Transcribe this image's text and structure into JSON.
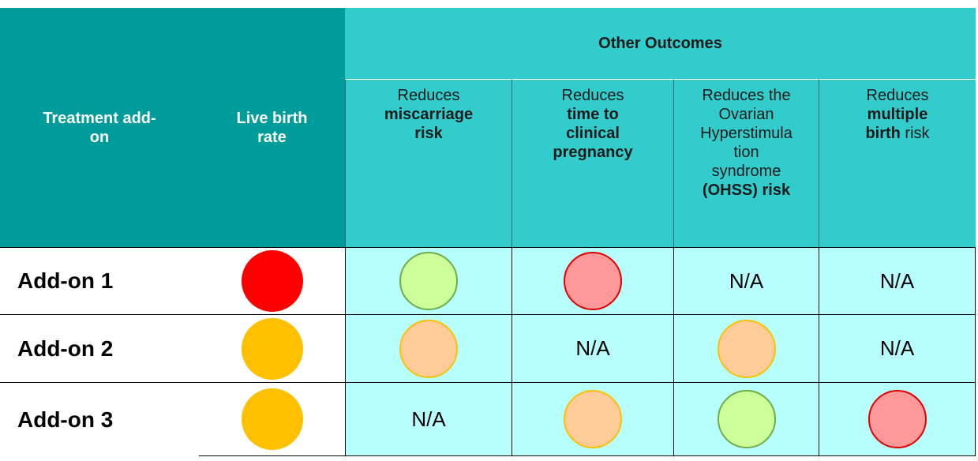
{
  "header": {
    "group": "Other Outcomes",
    "columns": [
      {
        "lines": [
          [
            {
              "text": "Treatment add-",
              "bold": true
            }
          ],
          [
            {
              "text": "on",
              "bold": true
            }
          ]
        ]
      },
      {
        "lines": [
          [
            {
              "text": "Live birth",
              "bold": true
            }
          ],
          [
            {
              "text": "rate",
              "bold": true
            }
          ]
        ]
      },
      {
        "lines": [
          [
            {
              "text": "Reduces",
              "bold": false
            }
          ],
          [
            {
              "text": "miscarriage",
              "bold": true
            }
          ],
          [
            {
              "text": "risk",
              "bold": true
            }
          ]
        ]
      },
      {
        "lines": [
          [
            {
              "text": "Reduces",
              "bold": false
            }
          ],
          [
            {
              "text": "time to",
              "bold": true
            }
          ],
          [
            {
              "text": "clinical",
              "bold": true
            }
          ],
          [
            {
              "text": "pregnancy",
              "bold": true
            }
          ]
        ]
      },
      {
        "lines": [
          [
            {
              "text": "Reduces the",
              "bold": false
            }
          ],
          [
            {
              "text": "Ovarian",
              "bold": false
            }
          ],
          [
            {
              "text": "Hyperstimula",
              "bold": false
            }
          ],
          [
            {
              "text": "tion",
              "bold": false
            }
          ],
          [
            {
              "text": "syndrome",
              "bold": false
            }
          ],
          [
            {
              "text": "(OHSS) risk",
              "bold": true
            }
          ]
        ]
      },
      {
        "lines": [
          [
            {
              "text": "Reduces",
              "bold": false
            }
          ],
          [
            {
              "text": "multiple",
              "bold": true
            }
          ],
          [
            {
              "text": "birth",
              "bold": true
            },
            {
              "text": " risk",
              "bold": false
            }
          ]
        ]
      }
    ]
  },
  "rows": [
    {
      "label": "Add-on 1",
      "cells": [
        {
          "fill": "#ff0000",
          "stroke": "#ff0000"
        },
        {
          "fill": "#ccff99",
          "stroke": "#70ad47"
        },
        {
          "fill": "#ff9999",
          "stroke": "#e00000"
        },
        {
          "text": "N/A"
        },
        {
          "text": "N/A"
        }
      ]
    },
    {
      "label": "Add-on 2",
      "cells": [
        {
          "fill": "#ffc000",
          "stroke": "#ffc000"
        },
        {
          "fill": "#ffcc99",
          "stroke": "#ffc000"
        },
        {
          "text": "N/A"
        },
        {
          "fill": "#ffcc99",
          "stroke": "#ffc000"
        },
        {
          "text": "N/A"
        }
      ]
    },
    {
      "label": "Add-on 3",
      "cells": [
        {
          "fill": "#ffc000",
          "stroke": "#ffc000"
        },
        {
          "text": "N/A"
        },
        {
          "fill": "#ffcc99",
          "stroke": "#ffc000"
        },
        {
          "fill": "#ccff99",
          "stroke": "#70ad47"
        },
        {
          "fill": "#ff9999",
          "stroke": "#e00000"
        }
      ]
    }
  ]
}
